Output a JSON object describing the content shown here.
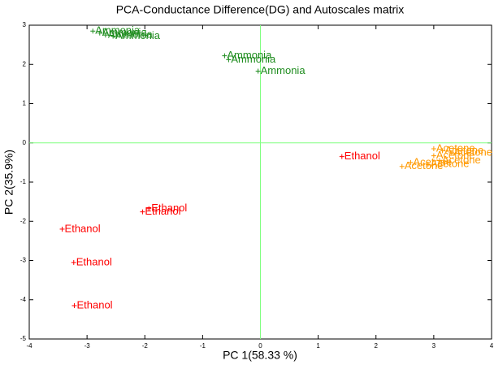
{
  "chart_data": {
    "type": "scatter",
    "title": "PCA-Conductance Difference(DG) and Autoscales matrix",
    "xlabel": "PC 1(58.33 %)",
    "ylabel": "PC 2(35.9%)",
    "xlim": [
      -4,
      4
    ],
    "xticks": [
      -4,
      -3,
      -2,
      -1,
      0,
      1,
      2,
      3,
      4
    ],
    "ylim": [
      -5,
      3
    ],
    "yticks": [
      -5,
      -4,
      -3,
      -2,
      -1,
      0,
      1,
      2,
      3
    ],
    "reference_lines": {
      "x": 0,
      "y": 0,
      "color": "#80ff80"
    },
    "series": [
      {
        "name": "Ammonia",
        "color": "#1e8c1e",
        "x": [
          -2.9,
          -2.78,
          -2.68,
          -2.55,
          -0.62,
          -0.55,
          -0.04
        ],
        "y": [
          2.85,
          2.8,
          2.75,
          2.72,
          2.22,
          2.12,
          1.83
        ]
      },
      {
        "name": "Ethanol",
        "color": "#ff0000",
        "x": [
          1.41,
          -1.93,
          -2.04,
          -3.43,
          -3.23,
          -3.22
        ],
        "y": [
          -0.35,
          -1.68,
          -1.76,
          -2.2,
          -3.05,
          -4.15
        ]
      },
      {
        "name": "Acetone",
        "color": "#ff9900",
        "x": [
          3.0,
          3.15,
          3.3,
          3.0,
          3.1,
          2.6,
          2.45,
          2.9
        ],
        "y": [
          -0.15,
          -0.2,
          -0.25,
          -0.33,
          -0.45,
          -0.5,
          -0.6,
          -0.55
        ]
      }
    ]
  }
}
